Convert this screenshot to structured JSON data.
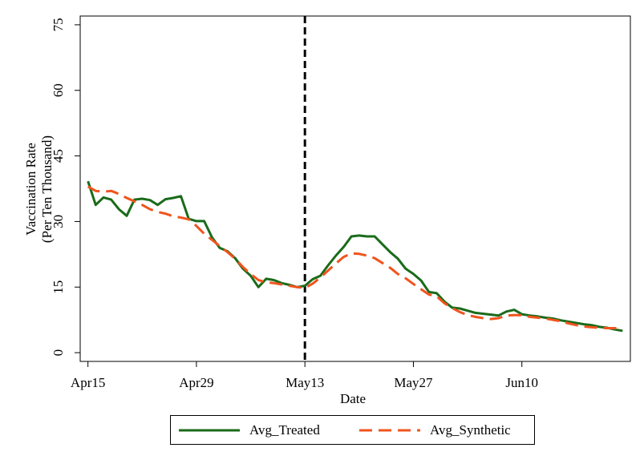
{
  "chart_data": {
    "type": "line",
    "xlabel": "Date",
    "ylabel": [
      "Vaccination Rate",
      "(Per Ten Thousand)"
    ],
    "ylim": [
      -2,
      77
    ],
    "yticks": [
      0,
      15,
      30,
      45,
      60,
      75
    ],
    "xticks": [
      {
        "label": "Apr15",
        "day": 0
      },
      {
        "label": "Apr29",
        "day": 14
      },
      {
        "label": "May13",
        "day": 28
      },
      {
        "label": "May27",
        "day": 42
      },
      {
        "label": "Jun10",
        "day": 56
      }
    ],
    "xlim": [
      -1,
      70
    ],
    "intervention_label": "May13",
    "grid": false,
    "legend_position": "bottom",
    "series": [
      {
        "name": "Avg_Treated",
        "color": "#1a6b1a",
        "style": "solid",
        "x": [
          0,
          1,
          2,
          3,
          4,
          5,
          6,
          7,
          8,
          9,
          10,
          11,
          12,
          13,
          14,
          15,
          16,
          17,
          18,
          19,
          20,
          21,
          22,
          23,
          24,
          25,
          26,
          27,
          28,
          29,
          30,
          31,
          32,
          33,
          34,
          35,
          36,
          37,
          38,
          39,
          40,
          41,
          42,
          43,
          44,
          45,
          46,
          47,
          48,
          49,
          50,
          51,
          52,
          53,
          54,
          55,
          56,
          57,
          58,
          59,
          60,
          61,
          62,
          63,
          64,
          65,
          66,
          67,
          68,
          69
        ],
        "values": [
          39.2,
          33.8,
          35.5,
          35.0,
          32.8,
          31.3,
          35.0,
          35.2,
          34.9,
          33.8,
          35.1,
          35.4,
          35.8,
          30.6,
          30.1,
          30.1,
          26.4,
          24.0,
          23.2,
          21.6,
          19.2,
          17.6,
          15.0,
          16.9,
          16.6,
          15.9,
          15.5,
          15.0,
          15.3,
          16.8,
          17.6,
          20.0,
          22.2,
          24.2,
          26.6,
          26.8,
          26.6,
          26.6,
          24.8,
          23.0,
          21.5,
          19.2,
          18.0,
          16.5,
          13.9,
          13.6,
          11.7,
          10.3,
          10.1,
          9.6,
          9.1,
          8.9,
          8.7,
          8.5,
          9.4,
          9.8,
          8.8,
          8.5,
          8.3,
          8.0,
          7.8,
          7.4,
          7.1,
          6.8,
          6.5,
          6.3,
          5.9,
          5.7,
          5.3,
          5.0
        ]
      },
      {
        "name": "Avg_Synthetic",
        "color": "#f0541e",
        "style": "dashed",
        "x": [
          0,
          1,
          2,
          3,
          4,
          5,
          6,
          7,
          8,
          9,
          10,
          11,
          12,
          13,
          14,
          15,
          16,
          17,
          18,
          19,
          20,
          21,
          22,
          23,
          24,
          25,
          26,
          27,
          28,
          29,
          30,
          31,
          32,
          33,
          34,
          35,
          36,
          37,
          38,
          39,
          40,
          41,
          42,
          43,
          44,
          45,
          46,
          47,
          48,
          49,
          50,
          51,
          52,
          53,
          54,
          55,
          56,
          57,
          58,
          59,
          60,
          61,
          62,
          63,
          64,
          65,
          66,
          67,
          68,
          69
        ],
        "values": [
          38.0,
          37.0,
          36.8,
          37.0,
          36.3,
          35.4,
          34.6,
          33.8,
          32.8,
          32.2,
          31.8,
          31.2,
          30.9,
          30.5,
          29.0,
          27.2,
          25.8,
          24.4,
          23.0,
          21.5,
          19.6,
          18.0,
          16.6,
          16.1,
          15.9,
          15.6,
          15.3,
          15.0,
          14.8,
          15.8,
          17.2,
          18.8,
          20.4,
          21.9,
          22.7,
          22.6,
          22.2,
          21.6,
          20.5,
          19.4,
          18.0,
          17.0,
          15.7,
          14.5,
          13.3,
          12.9,
          11.3,
          10.2,
          9.3,
          8.6,
          8.2,
          7.9,
          7.7,
          7.9,
          8.5,
          8.6,
          8.6,
          8.2,
          8.0,
          7.8,
          7.5,
          7.2,
          6.7,
          6.3,
          6.0,
          5.8,
          5.7,
          5.6,
          5.6,
          5.5
        ]
      }
    ]
  }
}
